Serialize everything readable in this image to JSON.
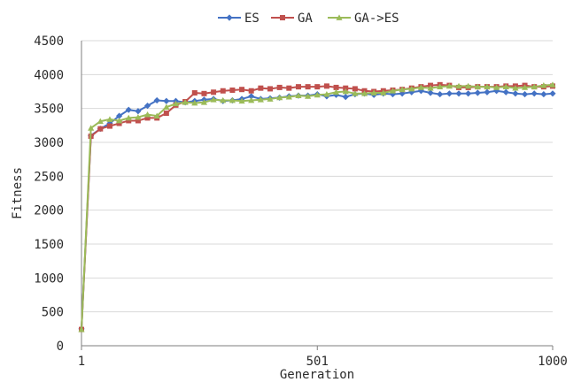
{
  "chart_data": {
    "type": "line",
    "title": "",
    "xlabel": "Generation",
    "ylabel": "Fitness",
    "x_tick_labels": [
      "1",
      "501",
      "1000"
    ],
    "x_tick_values": [
      1,
      501,
      1000
    ],
    "y_ticks": [
      0,
      500,
      1000,
      1500,
      2000,
      2500,
      3000,
      3500,
      4000,
      4500
    ],
    "xlim": [
      1,
      1000
    ],
    "ylim": [
      0,
      4500
    ],
    "grid": "horizontal",
    "legend_position": "top",
    "x": [
      1,
      21,
      41,
      61,
      81,
      101,
      121,
      141,
      161,
      181,
      201,
      221,
      241,
      261,
      281,
      301,
      321,
      341,
      361,
      381,
      401,
      421,
      441,
      461,
      481,
      501,
      521,
      541,
      561,
      581,
      601,
      621,
      641,
      661,
      681,
      701,
      721,
      741,
      761,
      781,
      801,
      821,
      841,
      861,
      881,
      901,
      921,
      941,
      961,
      981,
      1000
    ],
    "series": [
      {
        "name": "ES",
        "color": "#4472c4",
        "marker": "diamond",
        "values": [
          250,
          3100,
          3200,
          3280,
          3390,
          3480,
          3460,
          3540,
          3620,
          3610,
          3610,
          3590,
          3610,
          3630,
          3640,
          3610,
          3620,
          3640,
          3680,
          3640,
          3650,
          3660,
          3680,
          3690,
          3690,
          3710,
          3680,
          3700,
          3670,
          3710,
          3720,
          3700,
          3720,
          3710,
          3720,
          3740,
          3760,
          3730,
          3710,
          3720,
          3720,
          3720,
          3730,
          3740,
          3760,
          3740,
          3720,
          3710,
          3720,
          3710,
          3720
        ]
      },
      {
        "name": "GA",
        "color": "#c0504d",
        "marker": "square",
        "values": [
          240,
          3090,
          3200,
          3240,
          3280,
          3320,
          3320,
          3360,
          3360,
          3430,
          3550,
          3600,
          3730,
          3720,
          3740,
          3760,
          3770,
          3780,
          3760,
          3800,
          3790,
          3810,
          3800,
          3820,
          3820,
          3820,
          3830,
          3810,
          3800,
          3790,
          3760,
          3750,
          3760,
          3770,
          3780,
          3800,
          3820,
          3840,
          3850,
          3840,
          3810,
          3810,
          3820,
          3820,
          3820,
          3830,
          3830,
          3840,
          3820,
          3820,
          3830
        ]
      },
      {
        "name": "GA->ES",
        "color": "#9bbb59",
        "marker": "triangle",
        "values": [
          240,
          3210,
          3310,
          3340,
          3320,
          3360,
          3370,
          3410,
          3390,
          3520,
          3570,
          3590,
          3580,
          3590,
          3630,
          3620,
          3620,
          3610,
          3620,
          3630,
          3640,
          3660,
          3670,
          3690,
          3680,
          3700,
          3710,
          3740,
          3750,
          3720,
          3720,
          3730,
          3730,
          3760,
          3780,
          3790,
          3810,
          3800,
          3820,
          3830,
          3830,
          3830,
          3820,
          3820,
          3810,
          3820,
          3800,
          3810,
          3820,
          3840,
          3850
        ]
      }
    ]
  }
}
